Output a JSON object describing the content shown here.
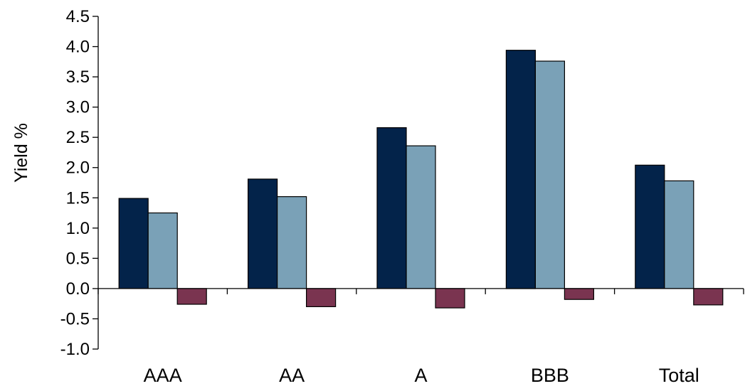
{
  "chart_data": {
    "type": "bar",
    "title": "",
    "xlabel": "",
    "ylabel": "Yield %",
    "ylim": [
      -1.0,
      4.5
    ],
    "yticks": [
      "4.5",
      "4.0",
      "3.5",
      "3.0",
      "2.5",
      "2.0",
      "1.5",
      "1.0",
      "0.5",
      "0.0",
      "-0.5",
      "-1.0"
    ],
    "categories": [
      "AAA",
      "AA",
      "A",
      "BBB",
      "Total"
    ],
    "grid": false,
    "legend": "none",
    "series": [
      {
        "color": "#03234a",
        "values": [
          1.49,
          1.81,
          2.66,
          3.94,
          2.04
        ]
      },
      {
        "color": "#7aa1b7",
        "values": [
          1.25,
          1.52,
          2.36,
          3.76,
          1.78
        ]
      },
      {
        "color": "#7a3450",
        "values": [
          -0.26,
          -0.3,
          -0.32,
          -0.18,
          -0.27
        ]
      }
    ]
  }
}
